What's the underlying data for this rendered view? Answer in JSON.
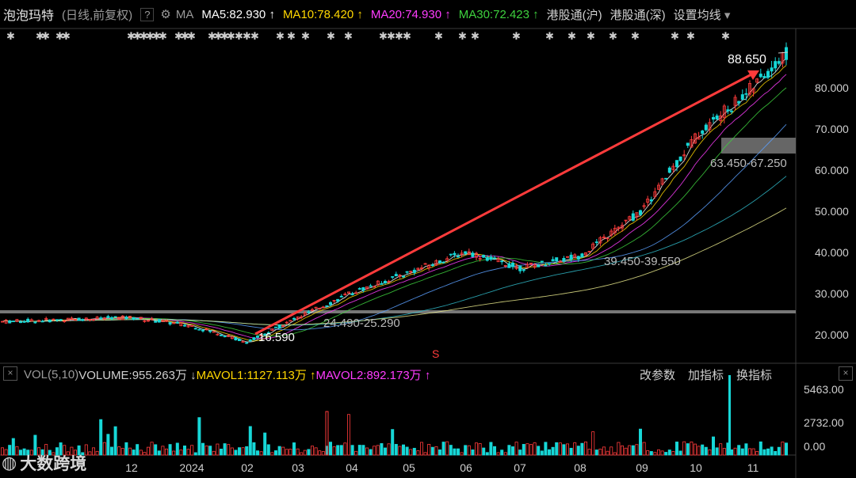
{
  "header": {
    "stock_name": "泡泡玛特",
    "mode": "(日线,前复权)",
    "help": "?",
    "ma_label": "MA",
    "ma5": "MA5:82.930",
    "ma10": "MA10:78.420",
    "ma20": "MA20:74.930",
    "ma30": "MA30:72.423",
    "arrow_up": "↑",
    "hk_sh": "港股通(沪)",
    "hk_sz": "港股通(深)",
    "settings": "设置均线",
    "dropdown": "▾",
    "colors": {
      "ma5": "#ffffff",
      "ma10": "#ffd700",
      "ma20": "#ff3cff",
      "ma30": "#3ed23e"
    }
  },
  "volume_header": {
    "label": "VOL(5,10)",
    "volume": "VOLUME:955.263万",
    "down_arrow": "↓",
    "mavol1": "MAVOL1:1127.113万",
    "mavol2": "MAVOL2:892.173万",
    "up_arrow": "↑",
    "close_left": "×",
    "close_right": "×"
  },
  "tools": {
    "change_params": "改参数",
    "add_indicator": "加指标",
    "switch_indicator": "换指标"
  },
  "price_axis": [
    "80.000",
    "70.000",
    "60.000",
    "50.000",
    "40.000",
    "30.000",
    "20.000"
  ],
  "volume_axis": [
    "5463.00",
    "2732.00",
    "0.00"
  ],
  "x_axis": [
    "12",
    "2024",
    "02",
    "03",
    "04",
    "05",
    "06",
    "07",
    "08",
    "09",
    "10",
    "11"
  ],
  "annotations": {
    "high": "88.650",
    "low": "16.590",
    "range1": "24.490-25.290",
    "range2": "39.450-39.550",
    "range3": "63.450-67.250",
    "s_marker": "S"
  },
  "logo": "大数跨境",
  "chart_data": {
    "type": "line",
    "x": [
      "12",
      "2024",
      "02",
      "03",
      "04",
      "05",
      "06",
      "07",
      "08",
      "09",
      "10",
      "11"
    ],
    "series": [
      {
        "values": [
          24,
          22,
          18,
          24,
          30,
          35,
          40,
          36,
          39,
          50,
          68,
          80
        ]
      }
    ],
    "high": 88.65,
    "low": 16.59,
    "ylim": [
      16,
      90
    ]
  }
}
